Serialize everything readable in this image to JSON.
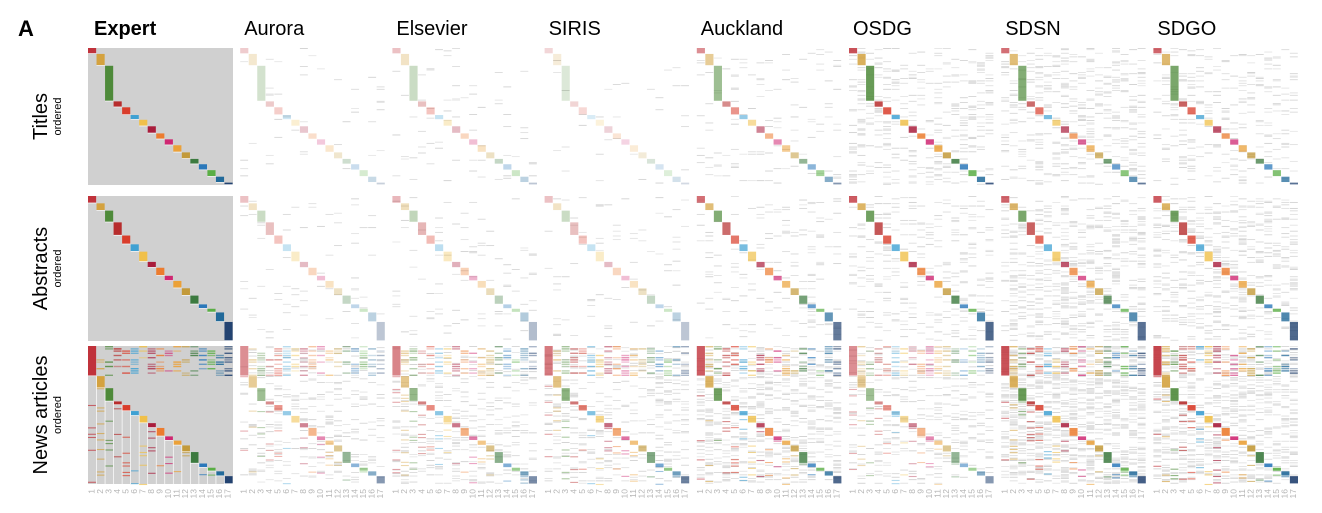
{
  "panel_label": "A",
  "columns": [
    "Expert",
    "Aurora",
    "Elsevier",
    "SIRIS",
    "Auckland",
    "OSDG",
    "SDSN",
    "SDGO"
  ],
  "rows": [
    {
      "label": "Titles",
      "sublabel": "ordered"
    },
    {
      "label": "Abstracts",
      "sublabel": "ordered"
    },
    {
      "label": "News articles",
      "sublabel": "ordered"
    }
  ],
  "colors": {
    "sdg": [
      "#c0323b",
      "#d4a23f",
      "#4e8a3a",
      "#b72d2d",
      "#d93d2b",
      "#3fa1d3",
      "#f0c04a",
      "#a91d3c",
      "#ec7c2f",
      "#cf2772",
      "#eba139",
      "#c39a3a",
      "#3c7a3f",
      "#2b78ba",
      "#5aae45",
      "#226a9a",
      "#234371"
    ],
    "expert_background": "#d0d0d0",
    "noise": "#bbbbbb",
    "tick_label": "#b5b5b5",
    "divider": "#ffffff"
  },
  "chart_data": {
    "type": "heatmap",
    "description_source": "small-multiple grid of document-by-SDG label matrices",
    "x": [
      "1",
      "2",
      "3",
      "4",
      "5",
      "6",
      "7",
      "8",
      "9",
      "10",
      "11",
      "12",
      "13",
      "14",
      "15",
      "16",
      "17"
    ],
    "xlabel": "",
    "ylabel": "",
    "series": [
      {
        "name": "Expert",
        "noise": [
          0.0,
          0.0,
          0.0
        ],
        "diag": [
          1.0,
          1.0,
          1.0
        ],
        "expert_bg": true
      },
      {
        "name": "Aurora",
        "noise": [
          0.03,
          0.05,
          0.18
        ],
        "diag": [
          0.25,
          0.3,
          0.55
        ]
      },
      {
        "name": "Elsevier",
        "noise": [
          0.04,
          0.06,
          0.2
        ],
        "diag": [
          0.3,
          0.35,
          0.6
        ]
      },
      {
        "name": "SIRIS",
        "noise": [
          0.03,
          0.06,
          0.22
        ],
        "diag": [
          0.2,
          0.3,
          0.65
        ]
      },
      {
        "name": "Auckland",
        "noise": [
          0.08,
          0.12,
          0.35
        ],
        "diag": [
          0.55,
          0.7,
          0.8
        ]
      },
      {
        "name": "OSDG",
        "noise": [
          0.28,
          0.22,
          0.2
        ],
        "diag": [
          0.85,
          0.8,
          0.55
        ]
      },
      {
        "name": "SDSN",
        "noise": [
          0.3,
          0.4,
          0.55
        ],
        "diag": [
          0.7,
          0.75,
          0.85
        ]
      },
      {
        "name": "SDGO",
        "noise": [
          0.22,
          0.35,
          0.45
        ],
        "diag": [
          0.75,
          0.8,
          0.9
        ]
      }
    ],
    "row_label_order": "ordered"
  }
}
